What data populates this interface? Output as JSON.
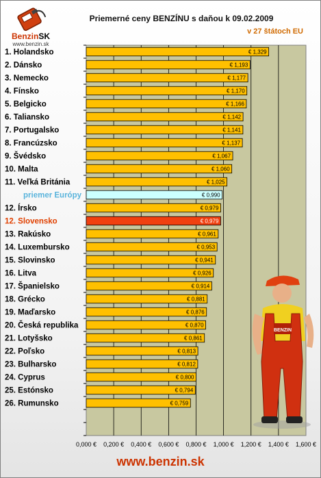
{
  "header": {
    "title": "Priemerné ceny BENZÍNU s daňou k 09.02.2009",
    "subtitle": "v 27 štátoch EU"
  },
  "logo": {
    "brand": "Benzin",
    "brand_suffix": "SK",
    "url": "www.benzin.sk"
  },
  "mascot": {
    "badge": "BENZIN"
  },
  "footer": {
    "url": "www.benzin.sk"
  },
  "colors": {
    "bar": "#ffc000",
    "average_bar": "#ccffff",
    "highlight_bar": "#f04010",
    "average_label": "#5ab4dc",
    "highlight_label": "#e04000",
    "plot_background": "#c8c8a0"
  },
  "chart_data": {
    "type": "bar",
    "orientation": "horizontal",
    "title": "Priemerné ceny BENZÍNU s daňou k 09.02.2009",
    "subtitle": "v 27 štátoch EU",
    "xlim": [
      0,
      1.6
    ],
    "x_ticks": [
      "0,000 €",
      "0,200 €",
      "0,400 €",
      "0,600 €",
      "0,800 €",
      "1,000 €",
      "1,200 €",
      "1,400 €",
      "1,600 €"
    ],
    "grid": true,
    "categories": [
      "1. Holandsko",
      "2. Dánsko",
      "3. Nemecko",
      "4. Fínsko",
      "5. Belgicko",
      "6. Taliansko",
      "7. Portugalsko",
      "8. Francúzsko",
      "9. Švédsko",
      "10. Malta",
      "11. Veľká Británia",
      "priemer Európy",
      "12. Írsko",
      "12. Slovensko",
      "13. Rakúsko",
      "14. Luxembursko",
      "15. Slovinsko",
      "16. Litva",
      "17. Španielsko",
      "18. Grécko",
      "19. Maďarsko",
      "20. Česká republika",
      "21. Lotyšsko",
      "22. Poľsko",
      "23. Bulharsko",
      "24. Cyprus",
      "25. Estónsko",
      "26. Rumunsko"
    ],
    "values": [
      1.329,
      1.193,
      1.177,
      1.17,
      1.166,
      1.142,
      1.141,
      1.137,
      1.067,
      1.06,
      1.025,
      0.99,
      0.979,
      0.979,
      0.961,
      0.953,
      0.941,
      0.926,
      0.914,
      0.881,
      0.876,
      0.87,
      0.861,
      0.813,
      0.812,
      0.8,
      0.794,
      0.759
    ],
    "value_labels": [
      "€ 1,329",
      "€ 1,193",
      "€ 1,177",
      "€ 1,170",
      "€ 1,166",
      "€ 1,142",
      "€ 1,141",
      "€ 1,137",
      "€ 1,067",
      "€ 1,060",
      "€ 1,025",
      "€ 0,990",
      "€ 0,979",
      "€ 0,979",
      "€ 0,961",
      "€ 0,953",
      "€ 0,941",
      "€ 0,926",
      "€ 0,914",
      "€ 0,881",
      "€ 0,876",
      "€ 0,870",
      "€ 0,861",
      "€ 0,813",
      "€ 0,812",
      "€ 0,800",
      "€ 0,794",
      "€ 0,759"
    ],
    "bar_styles": [
      "normal",
      "normal",
      "normal",
      "normal",
      "normal",
      "normal",
      "normal",
      "normal",
      "normal",
      "normal",
      "normal",
      "average",
      "normal",
      "highlight",
      "normal",
      "normal",
      "normal",
      "normal",
      "normal",
      "normal",
      "normal",
      "normal",
      "normal",
      "normal",
      "normal",
      "normal",
      "normal",
      "normal"
    ]
  }
}
